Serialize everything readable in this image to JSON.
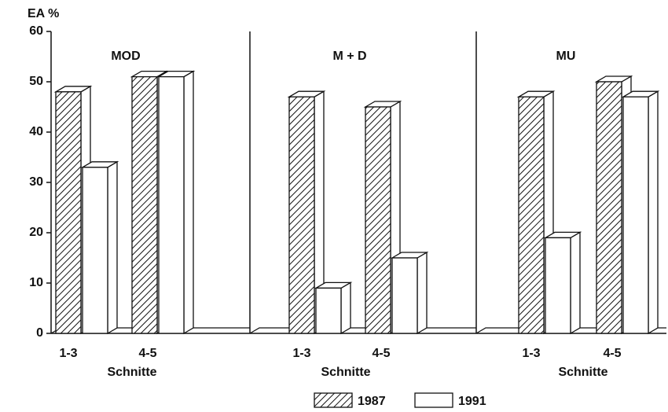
{
  "chart_data": {
    "type": "bar3d",
    "ylabel": "EA %",
    "ylim": [
      0,
      60
    ],
    "yticks": [
      0,
      10,
      20,
      30,
      40,
      50,
      60
    ],
    "series": [
      {
        "name": "1987",
        "color": "#ffffff",
        "pattern": "hatch"
      },
      {
        "name": "1991",
        "color": "#ffffff"
      }
    ],
    "panels": [
      {
        "title": "MOD",
        "categories": [
          "1-3",
          "4-5"
        ],
        "xlabel": "Schnitte",
        "values": [
          [
            48,
            51
          ],
          [
            33,
            51
          ]
        ]
      },
      {
        "title": "M + D",
        "categories": [
          "1-3",
          "4-5"
        ],
        "xlabel": "Schnitte",
        "values": [
          [
            47,
            45
          ],
          [
            9,
            15
          ]
        ]
      },
      {
        "title": "MU",
        "categories": [
          "1-3",
          "4-5"
        ],
        "xlabel": "Schnitte",
        "values": [
          [
            47,
            50
          ],
          [
            19,
            47
          ]
        ]
      }
    ]
  }
}
